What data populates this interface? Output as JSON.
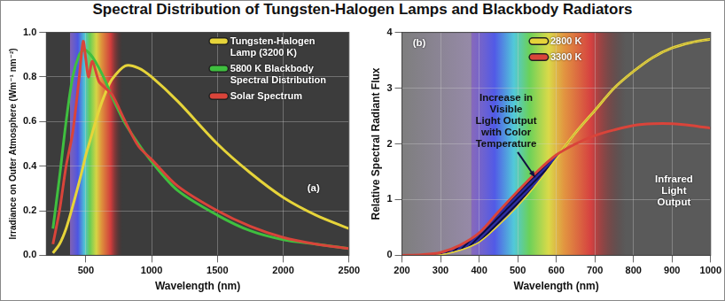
{
  "title": "Spectral Distribution of Tungsten-Halogen Lamps and Blackbody Radiators",
  "chart_data": [
    {
      "type": "line",
      "xlabel": "Wavelength (nm)",
      "ylabel": "Irradiance on Outer Atmosphere (Wm⁻¹ nm⁻²)",
      "annotations": [
        "(a)"
      ],
      "x": [
        250,
        300,
        350,
        400,
        450,
        480,
        500,
        520,
        550,
        600,
        650,
        700,
        800,
        900,
        1000,
        1200,
        1500,
        1750,
        2000,
        2250,
        2500
      ],
      "series": [
        {
          "name": "Tungsten-Halogen Lamp (3200 K)",
          "color": "#e6d43a",
          "values": [
            0.01,
            0.05,
            0.12,
            0.22,
            0.33,
            0.4,
            0.45,
            0.49,
            0.55,
            0.65,
            0.73,
            0.79,
            0.85,
            0.84,
            0.8,
            0.69,
            0.5,
            0.37,
            0.26,
            0.18,
            0.12
          ]
        },
        {
          "name": "5800 K Blackbody Spectral Distribution",
          "color": "#3fbf3f",
          "values": [
            0.12,
            0.35,
            0.6,
            0.8,
            0.9,
            0.92,
            0.92,
            0.91,
            0.89,
            0.84,
            0.78,
            0.71,
            0.59,
            0.5,
            0.42,
            0.29,
            0.18,
            0.11,
            0.07,
            0.05,
            0.03
          ]
        },
        {
          "name": "Solar Spectrum",
          "color": "#d9443a",
          "values": [
            0.05,
            0.2,
            0.4,
            0.55,
            0.8,
            0.96,
            0.88,
            0.8,
            0.87,
            0.78,
            0.75,
            0.72,
            0.6,
            0.49,
            0.43,
            0.31,
            0.2,
            0.13,
            0.08,
            0.05,
            0.03
          ]
        }
      ],
      "xlim": [
        200,
        2500
      ],
      "xticks": [
        500,
        1000,
        1500,
        2000,
        2500
      ],
      "ylim": [
        0,
        1
      ],
      "yticks": [
        {
          "value": 0,
          "label": "0.0"
        },
        0.2,
        0.4,
        0.6,
        0.8,
        {
          "value": 1,
          "label": "1.0"
        }
      ],
      "grid": true,
      "legend": "upper right"
    },
    {
      "type": "line",
      "xlabel": "Wavelength (nm)",
      "ylabel": "Relative Spectral Radiant Flux",
      "annotations": [
        "Increase in\nVisible\nLight Output\nwith Color\nTemperature",
        "Infrared\nLight\nOutput",
        "(b)"
      ],
      "x": [
        200,
        250,
        300,
        350,
        400,
        450,
        500,
        550,
        600,
        650,
        700,
        750,
        800,
        850,
        900,
        950,
        1000
      ],
      "series": [
        {
          "name": "2800 K",
          "color": "#e6d43a",
          "values": [
            0,
            0,
            0.02,
            0.1,
            0.25,
            0.55,
            0.9,
            1.3,
            1.75,
            2.2,
            2.6,
            3.0,
            3.3,
            3.55,
            3.72,
            3.82,
            3.88
          ]
        },
        {
          "name": "3300 K",
          "color": "#d9443a",
          "values": [
            0,
            0.01,
            0.05,
            0.18,
            0.4,
            0.78,
            1.15,
            1.5,
            1.8,
            2.0,
            2.15,
            2.25,
            2.33,
            2.36,
            2.36,
            2.33,
            2.28
          ]
        }
      ],
      "xlim": [
        200,
        1000
      ],
      "xticks": [
        200,
        300,
        400,
        500,
        600,
        700,
        800,
        900,
        1000
      ],
      "ylim": [
        0,
        4
      ],
      "yticks": [
        0,
        1,
        2,
        3,
        4
      ],
      "grid": true,
      "legend": "top"
    }
  ]
}
